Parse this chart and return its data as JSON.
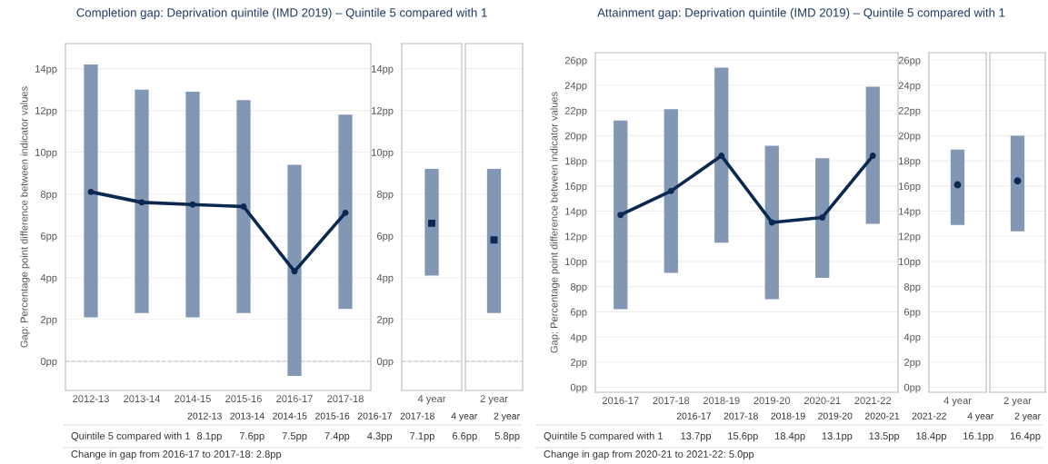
{
  "chart_data": [
    {
      "type": "line",
      "title": "Completion gap: Deprivation quintile (IMD 2019) – Quintile 5 compared with 1",
      "ylabel": "Gap: Percentage point difference between indicator values",
      "categories": [
        "2012-13",
        "2013-14",
        "2014-15",
        "2015-16",
        "2016-17",
        "2017-18"
      ],
      "series": [
        {
          "color": "#0b2850",
          "values": [
            8.1,
            7.6,
            7.5,
            7.4,
            4.3,
            7.1
          ],
          "errors": [
            [
              2.1,
              14.2
            ],
            [
              2.3,
              13.0
            ],
            [
              2.1,
              12.9
            ],
            [
              2.3,
              12.5
            ],
            [
              -0.7,
              9.4
            ],
            [
              2.5,
              11.8
            ]
          ]
        }
      ],
      "value_labels": [
        "8.1pp",
        "7.6pp",
        "7.5pp",
        "7.4pp",
        "4.3pp",
        "7.1pp"
      ],
      "ylim": [
        -1.4,
        15.2
      ],
      "yticks": [
        {
          "value": 0,
          "label": "0pp"
        },
        {
          "value": 2,
          "label": "2pp"
        },
        {
          "value": 4,
          "label": "4pp"
        },
        {
          "value": 6,
          "label": "6pp"
        },
        {
          "value": 8,
          "label": "8pp"
        },
        {
          "value": 10,
          "label": "10pp"
        },
        {
          "value": 12,
          "label": "12pp"
        },
        {
          "value": 14,
          "label": "14pp"
        }
      ],
      "grid": "y",
      "marker": "circle",
      "ref_lines": [
        {
          "axis": "y",
          "value": 0,
          "line_style": "dashed",
          "color": "#cccccc"
        }
      ],
      "annotations": [
        "Quintile 5 compared with 1",
        "Change in gap from 2016-17 to 2017-18: 2.8pp"
      ]
    },
    {
      "type": "scatter",
      "categories": [
        "4 year"
      ],
      "series": [
        {
          "color": "#0b2850",
          "values": [
            6.6
          ],
          "errors": [
            [
              4.1,
              9.2
            ]
          ]
        }
      ],
      "value_labels": [
        "6.6pp"
      ],
      "ylim": [
        -1.4,
        15.2
      ],
      "yticks": [
        {
          "value": 0,
          "label": "0pp"
        },
        {
          "value": 2,
          "label": "2pp"
        },
        {
          "value": 4,
          "label": "4pp"
        },
        {
          "value": 6,
          "label": "6pp"
        },
        {
          "value": 8,
          "label": "8pp"
        },
        {
          "value": 10,
          "label": "10pp"
        },
        {
          "value": 12,
          "label": "12pp"
        },
        {
          "value": 14,
          "label": "14pp"
        }
      ],
      "grid": "y",
      "marker": "square",
      "ref_lines": [
        {
          "axis": "y",
          "value": 0,
          "line_style": "dashed",
          "color": "#cccccc"
        }
      ]
    },
    {
      "type": "scatter",
      "categories": [
        "2 year"
      ],
      "series": [
        {
          "color": "#0b2850",
          "values": [
            5.8
          ],
          "errors": [
            [
              2.3,
              9.2
            ]
          ]
        }
      ],
      "value_labels": [
        "5.8pp"
      ],
      "ylim": [
        -1.4,
        15.2
      ],
      "yticks": [
        {
          "value": 0,
          "label": null
        },
        {
          "value": 2,
          "label": null
        },
        {
          "value": 4,
          "label": null
        },
        {
          "value": 6,
          "label": null
        },
        {
          "value": 8,
          "label": null
        },
        {
          "value": 10,
          "label": null
        },
        {
          "value": 12,
          "label": null
        },
        {
          "value": 14,
          "label": null
        }
      ],
      "grid": "y",
      "marker": "square",
      "tick_labels": "x",
      "ref_lines": [
        {
          "axis": "y",
          "value": 0,
          "line_style": "dashed",
          "color": "#cccccc"
        }
      ]
    },
    {
      "type": "line",
      "title": "Attainment gap: Deprivation quintile (IMD 2019) – Quintile 5 compared with 1",
      "ylabel": "Gap: Percentage point difference between indicator values",
      "categories": [
        "2016-17",
        "2017-18",
        "2018-19",
        "2019-20",
        "2020-21",
        "2021-22"
      ],
      "series": [
        {
          "color": "#0b2850",
          "values": [
            13.7,
            15.6,
            18.4,
            13.1,
            13.5,
            18.4
          ],
          "errors": [
            [
              6.2,
              21.2
            ],
            [
              9.1,
              22.1
            ],
            [
              11.5,
              25.4
            ],
            [
              7.0,
              19.2
            ],
            [
              8.7,
              18.2
            ],
            [
              13.0,
              23.9
            ]
          ]
        }
      ],
      "value_labels": [
        "13.7pp",
        "15.6pp",
        "18.4pp",
        "13.1pp",
        "13.5pp",
        "18.4pp"
      ],
      "ylim": [
        -0.4,
        26.6
      ],
      "yticks": [
        {
          "value": 0,
          "label": "0pp"
        },
        {
          "value": 2,
          "label": "2pp"
        },
        {
          "value": 4,
          "label": "4pp"
        },
        {
          "value": 6,
          "label": "6pp"
        },
        {
          "value": 8,
          "label": "8pp"
        },
        {
          "value": 10,
          "label": "10pp"
        },
        {
          "value": 12,
          "label": "12pp"
        },
        {
          "value": 14,
          "label": "14pp"
        },
        {
          "value": 16,
          "label": "16pp"
        },
        {
          "value": 18,
          "label": "18pp"
        },
        {
          "value": 20,
          "label": "20pp"
        },
        {
          "value": 22,
          "label": "22pp"
        },
        {
          "value": 24,
          "label": "24pp"
        },
        {
          "value": 26,
          "label": "26pp"
        }
      ],
      "grid": "y",
      "marker": "circle",
      "annotations": [
        "Quintile 5 compared with 1",
        "Change in gap from 2020-21 to 2021-22: 5.0pp"
      ]
    },
    {
      "type": "scatter",
      "categories": [
        "4 year"
      ],
      "series": [
        {
          "color": "#0b2850",
          "values": [
            16.1
          ],
          "errors": [
            [
              12.9,
              18.9
            ]
          ]
        }
      ],
      "value_labels": [
        "16.1pp"
      ],
      "ylim": [
        -0.4,
        26.6
      ],
      "yticks": [
        {
          "value": 0,
          "label": "0pp"
        },
        {
          "value": 2,
          "label": "2pp"
        },
        {
          "value": 4,
          "label": "4pp"
        },
        {
          "value": 6,
          "label": "6pp"
        },
        {
          "value": 8,
          "label": "8pp"
        },
        {
          "value": 10,
          "label": "10pp"
        },
        {
          "value": 12,
          "label": "12pp"
        },
        {
          "value": 14,
          "label": "14pp"
        },
        {
          "value": 16,
          "label": "16pp"
        },
        {
          "value": 18,
          "label": "18pp"
        },
        {
          "value": 20,
          "label": "20pp"
        },
        {
          "value": 22,
          "label": "22pp"
        },
        {
          "value": 24,
          "label": "24pp"
        },
        {
          "value": 26,
          "label": "26pp"
        }
      ],
      "grid": "y",
      "marker": "circle"
    },
    {
      "type": "scatter",
      "categories": [
        "2 year"
      ],
      "series": [
        {
          "color": "#0b2850",
          "values": [
            16.4
          ],
          "errors": [
            [
              12.4,
              20.0
            ]
          ]
        }
      ],
      "value_labels": [
        "16.4pp"
      ],
      "ylim": [
        -0.4,
        26.6
      ],
      "yticks": [
        {
          "value": 0,
          "label": null
        },
        {
          "value": 2,
          "label": null
        },
        {
          "value": 4,
          "label": null
        },
        {
          "value": 6,
          "label": null
        },
        {
          "value": 8,
          "label": null
        },
        {
          "value": 10,
          "label": null
        },
        {
          "value": 12,
          "label": null
        },
        {
          "value": 14,
          "label": null
        },
        {
          "value": 16,
          "label": null
        },
        {
          "value": 18,
          "label": null
        },
        {
          "value": 20,
          "label": null
        },
        {
          "value": 22,
          "label": null
        },
        {
          "value": 24,
          "label": null
        },
        {
          "value": 26,
          "label": null
        }
      ],
      "grid": "y",
      "marker": "circle",
      "tick_labels": "x"
    }
  ]
}
